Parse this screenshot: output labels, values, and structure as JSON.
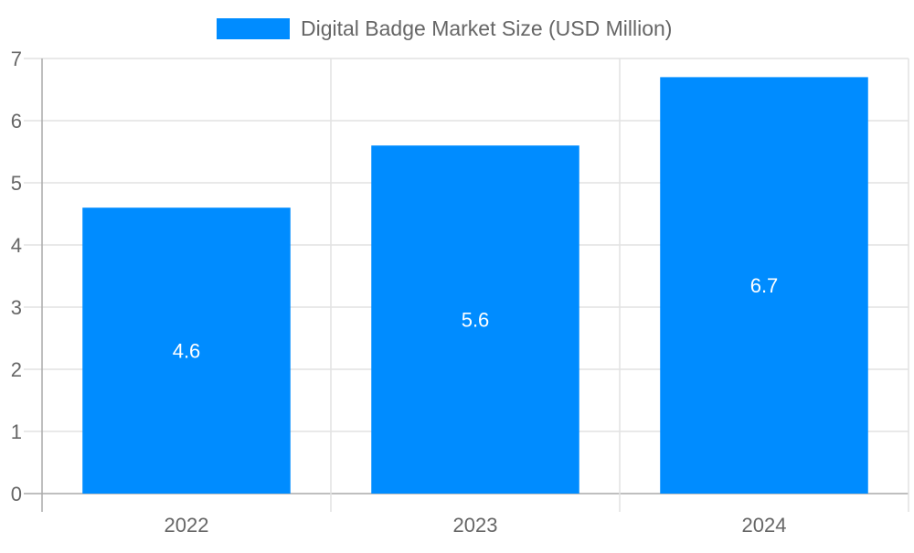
{
  "chart_data": {
    "type": "bar",
    "title": "",
    "xlabel": "",
    "ylabel": "",
    "categories": [
      "2022",
      "2023",
      "2024"
    ],
    "series": [
      {
        "name": "Digital Badge Market Size (USD Million)",
        "values": [
          4.6,
          5.6,
          6.7
        ],
        "color": "#008CFF"
      }
    ],
    "data_labels": [
      "4.6",
      "5.6",
      "6.7"
    ],
    "ylim": [
      0,
      7
    ],
    "yticks": [
      "0",
      "1",
      "2",
      "3",
      "4",
      "5",
      "6",
      "7"
    ],
    "grid": true,
    "legend_position": "top"
  }
}
